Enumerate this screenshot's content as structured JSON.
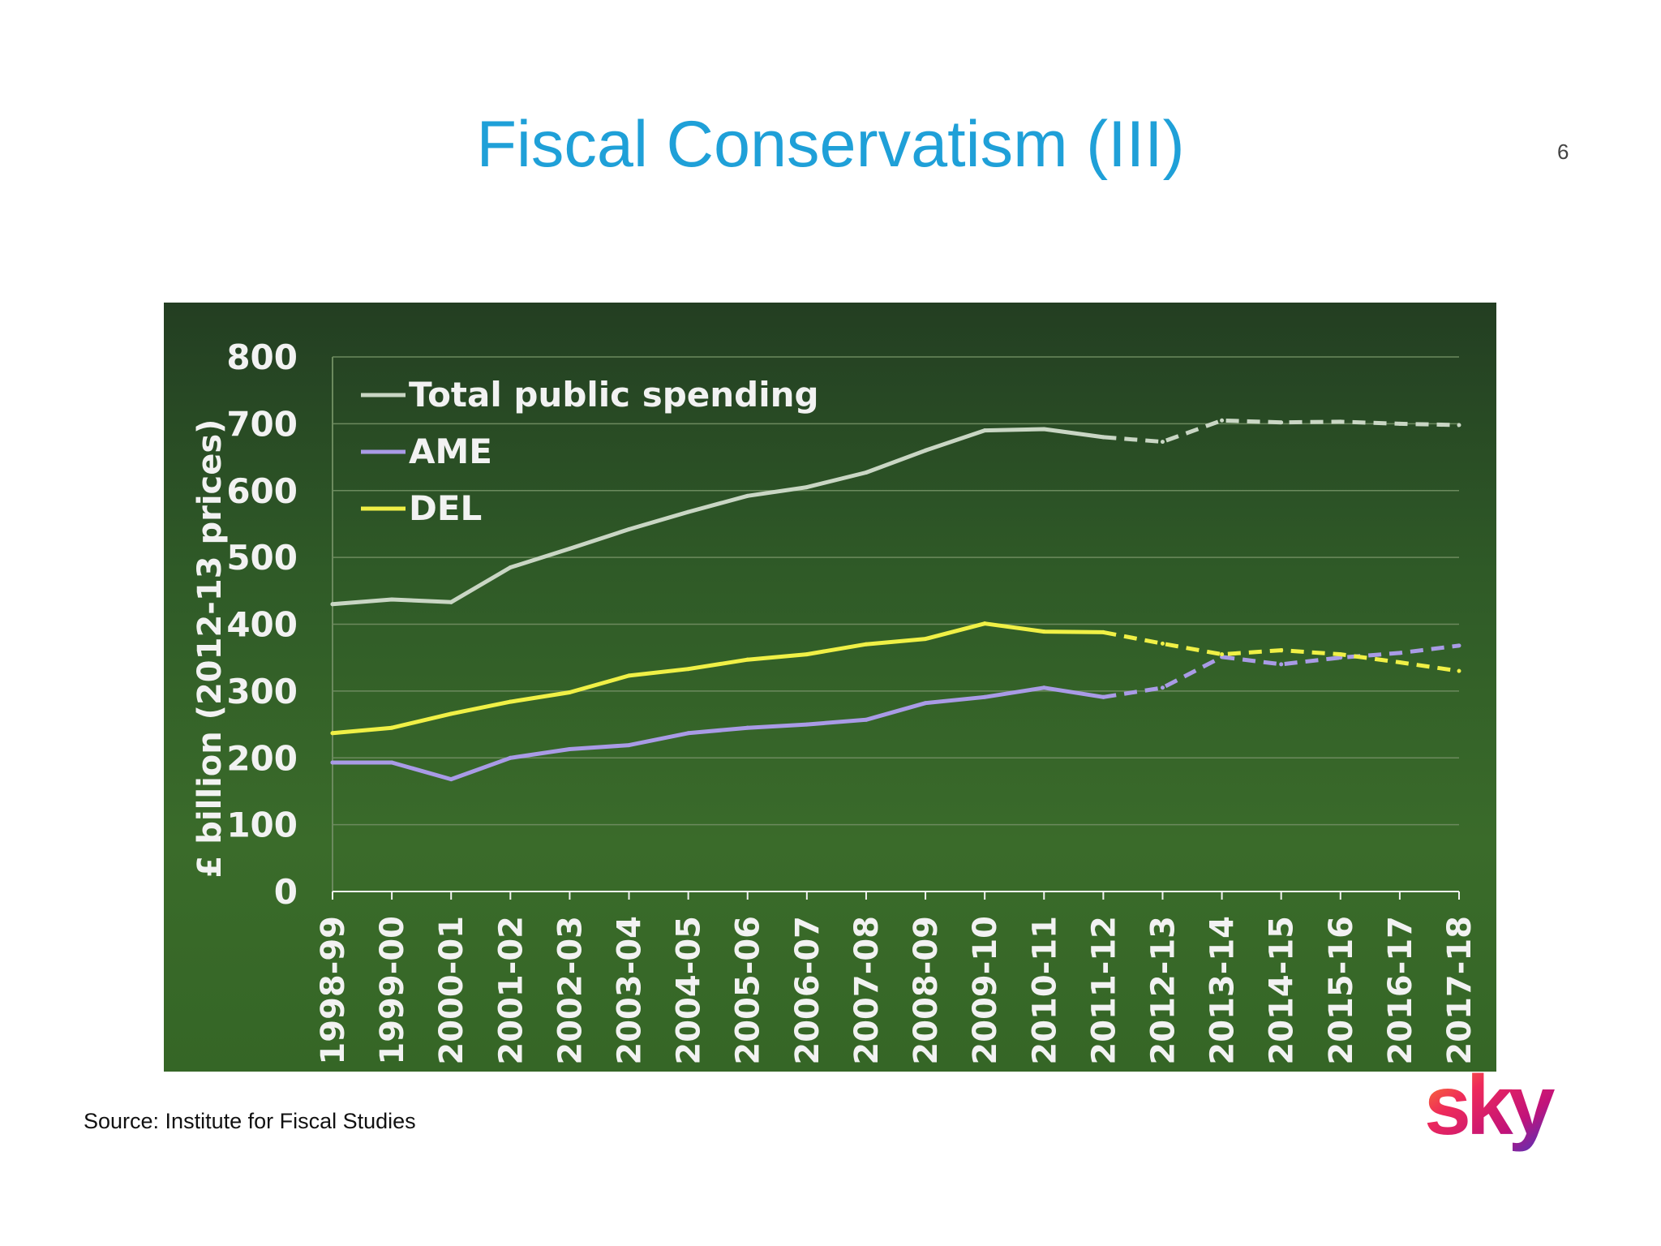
{
  "slide": {
    "title": "Fiscal Conservatism (III)",
    "page_number": "6",
    "source": "Source: Institute for Fiscal Studies",
    "logo_text": "sky"
  },
  "colors": {
    "title": "#1fa0d8",
    "total": "#c9d6c4",
    "ame": "#a99be6",
    "del": "#f0f046",
    "axis_text": "#f2f2f2",
    "grid": "#6c8a5e"
  },
  "chart_data": {
    "type": "line",
    "title": "",
    "ylabel": "£ billion (2012-13 prices)",
    "xlabel": "",
    "ylim": [
      0,
      800
    ],
    "yticks": [
      0,
      100,
      200,
      300,
      400,
      500,
      600,
      700,
      800
    ],
    "grid": true,
    "legend_position": "top-left",
    "categories": [
      "1998-99",
      "1999-00",
      "2000-01",
      "2001-02",
      "2002-03",
      "2003-04",
      "2004-05",
      "2005-06",
      "2006-07",
      "2007-08",
      "2008-09",
      "2009-10",
      "2010-11",
      "2011-12",
      "2012-13",
      "2013-14",
      "2014-15",
      "2015-16",
      "2016-17",
      "2017-18"
    ],
    "forecast_from": "2011-12",
    "series": [
      {
        "name": "Total public spending",
        "color_key": "total",
        "values": [
          430,
          437,
          433,
          485,
          513,
          542,
          568,
          592,
          605,
          627,
          660,
          690,
          692,
          680,
          673,
          705,
          702,
          703,
          700,
          698
        ]
      },
      {
        "name": "AME",
        "color_key": "ame",
        "values": [
          193,
          193,
          168,
          200,
          213,
          219,
          237,
          245,
          250,
          257,
          282,
          291,
          305,
          291,
          305,
          351,
          340,
          350,
          357,
          368
        ]
      },
      {
        "name": "DEL",
        "color_key": "del",
        "values": [
          237,
          245,
          266,
          284,
          298,
          323,
          333,
          347,
          355,
          370,
          378,
          401,
          389,
          388,
          371,
          355,
          361,
          355,
          343,
          330
        ]
      }
    ]
  }
}
